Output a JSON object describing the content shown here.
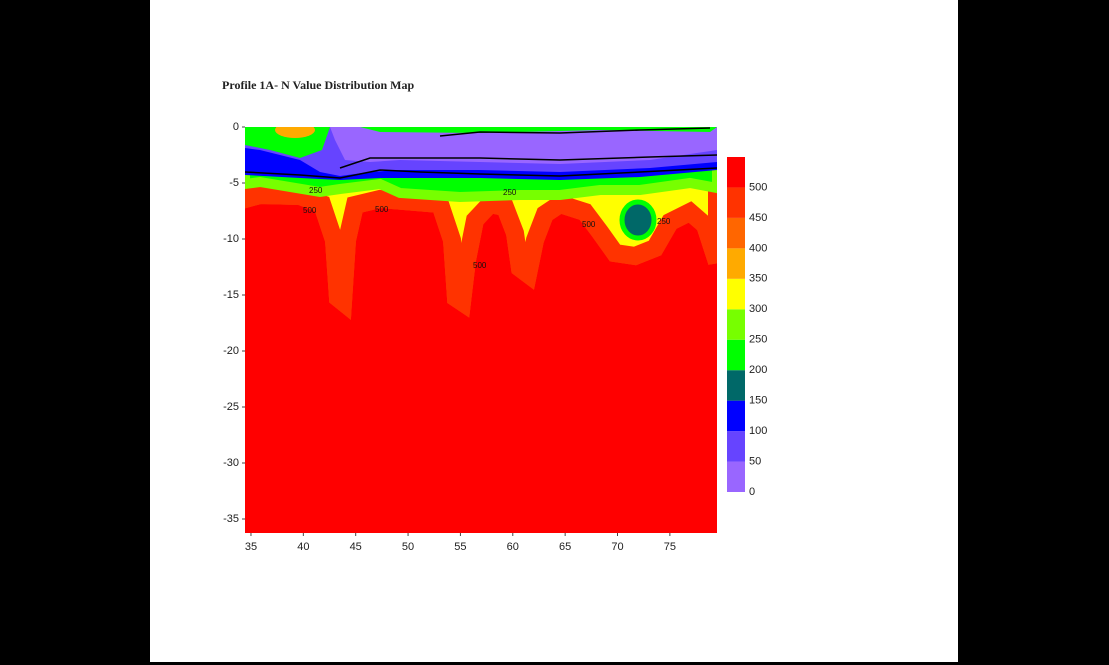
{
  "chart_data": {
    "type": "contour",
    "title": "Profile 1A- N Value Distribution Map",
    "xlim": [
      34.43,
      79.5
    ],
    "xticks": [
      35,
      40,
      45,
      50,
      55,
      60,
      65,
      70,
      75
    ],
    "ylim": [
      -36.25,
      0
    ],
    "yticks": [
      0,
      -5,
      -10,
      -15,
      -20,
      -25,
      -30,
      -35
    ],
    "colorbar": {
      "levels": [
        0,
        50,
        100,
        150,
        200,
        250,
        300,
        350,
        400,
        450,
        500,
        550
      ],
      "ticks": [
        0,
        50,
        100,
        150,
        200,
        250,
        300,
        350,
        400,
        450,
        500
      ],
      "colors": [
        "#9966ff",
        "#6644ff",
        "#0000ff",
        "#006868",
        "#00ff00",
        "#77ff00",
        "#ffff00",
        "#ffaa00",
        "#ff6600",
        "#ff3300",
        "#ff0000"
      ]
    },
    "contour_labels": [
      250,
      500,
      500,
      250,
      500,
      500,
      250
    ]
  }
}
